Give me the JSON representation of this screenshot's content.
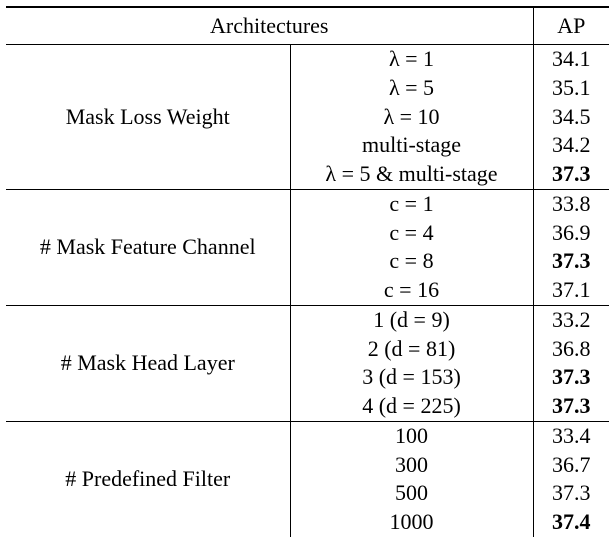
{
  "table": {
    "header": {
      "architectures": "Architectures",
      "ap": "AP"
    },
    "groups": [
      {
        "label": "Mask Loss Weight",
        "rows": [
          {
            "setting": "λ = 1",
            "ap": "34.1",
            "bold": false
          },
          {
            "setting": "λ = 5",
            "ap": "35.1",
            "bold": false
          },
          {
            "setting": "λ = 10",
            "ap": "34.5",
            "bold": false
          },
          {
            "setting": "multi-stage",
            "ap": "34.2",
            "bold": false
          },
          {
            "setting": "λ = 5 & multi-stage",
            "ap": "37.3",
            "bold": true
          }
        ]
      },
      {
        "label": "# Mask Feature Channel",
        "rows": [
          {
            "setting": "c = 1",
            "ap": "33.8",
            "bold": false
          },
          {
            "setting": "c = 4",
            "ap": "36.9",
            "bold": false
          },
          {
            "setting": "c = 8",
            "ap": "37.3",
            "bold": true
          },
          {
            "setting": "c = 16",
            "ap": "37.1",
            "bold": false
          }
        ]
      },
      {
        "label": "# Mask Head Layer",
        "rows": [
          {
            "setting": "1 (d = 9)",
            "ap": "33.2",
            "bold": false
          },
          {
            "setting": "2 (d = 81)",
            "ap": "36.8",
            "bold": false
          },
          {
            "setting": "3 (d = 153)",
            "ap": "37.3",
            "bold": true
          },
          {
            "setting": "4 (d = 225)",
            "ap": "37.3",
            "bold": true
          }
        ]
      },
      {
        "label": "# Predefined Filter",
        "rows": [
          {
            "setting": "100",
            "ap": "33.4",
            "bold": false
          },
          {
            "setting": "300",
            "ap": "36.7",
            "bold": false
          },
          {
            "setting": "500",
            "ap": "37.3",
            "bold": false
          },
          {
            "setting": "1000",
            "ap": "37.4",
            "bold": true
          }
        ]
      }
    ]
  }
}
